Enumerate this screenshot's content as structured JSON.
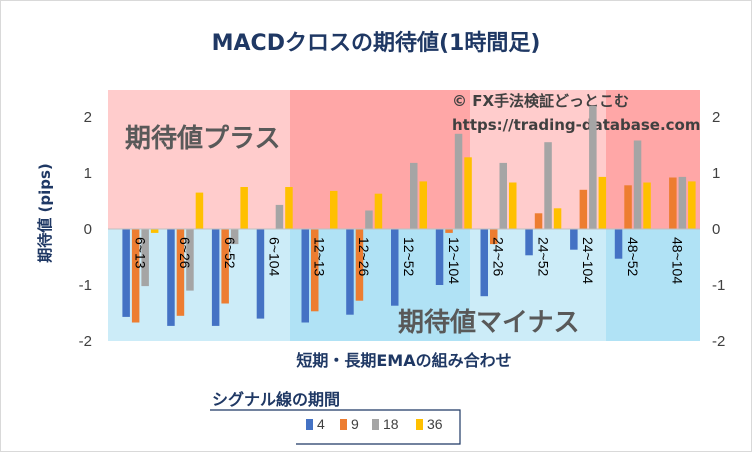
{
  "chart_data": {
    "type": "bar",
    "title": "MACDクロスの期待値(1時間足)",
    "xlabel": "短期・長期EMAの組み合わせ",
    "ylabel": "期待値 (pips)",
    "ylim": [
      -2,
      2.5
    ],
    "yticks": [
      -2,
      -1,
      0,
      1,
      2
    ],
    "grid": false,
    "categories": [
      "6~13",
      "6~26",
      "6~52",
      "6~104",
      "12~13",
      "12~26",
      "12~52",
      "12~104",
      "24~26",
      "24~52",
      "24~104",
      "48~52",
      "48~104"
    ],
    "series": [
      {
        "name": "4",
        "color": "#4472c4",
        "values": [
          -1.57,
          -1.73,
          -1.73,
          -1.6,
          -1.67,
          -1.53,
          -1.37,
          -1.0,
          -1.2,
          -0.47,
          -0.37,
          -0.53,
          0.0
        ]
      },
      {
        "name": "9",
        "color": "#ed7d31",
        "values": [
          -1.67,
          -1.55,
          -1.33,
          0.0,
          -1.47,
          -1.28,
          0.0,
          -0.07,
          -0.27,
          0.28,
          0.7,
          0.78,
          0.92
        ]
      },
      {
        "name": "18",
        "color": "#a5a5a5",
        "values": [
          -1.02,
          -1.1,
          -0.27,
          0.43,
          0.0,
          0.33,
          1.18,
          1.7,
          1.18,
          1.55,
          2.2,
          1.58,
          0.93
        ]
      },
      {
        "name": "36",
        "color": "#ffc000",
        "values": [
          -0.07,
          0.65,
          0.75,
          0.75,
          0.68,
          0.63,
          0.85,
          1.28,
          0.83,
          0.37,
          0.93,
          0.83,
          0.85
        ]
      }
    ],
    "region_labels": {
      "plus": "期待値プラス",
      "minus": "期待値マイナス"
    },
    "watermark_line1": "© FX手法検証どっとこむ",
    "watermark_line2": "https://trading-database.com",
    "legend": {
      "title": "シグナル線の期間",
      "position": "bottom"
    }
  }
}
